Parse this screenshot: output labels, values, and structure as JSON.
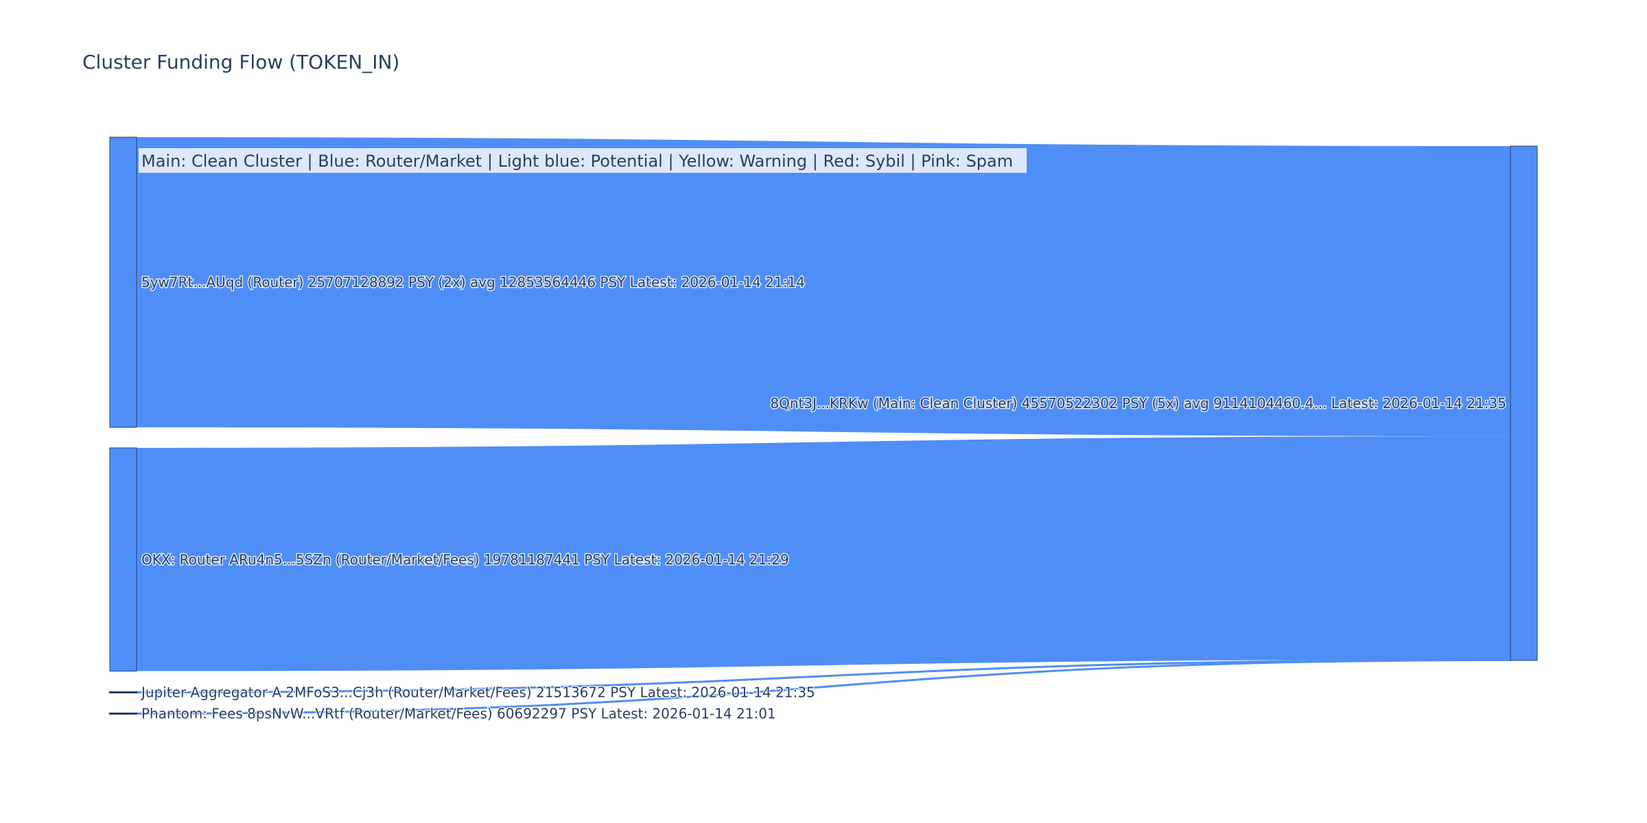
{
  "chart_data": {
    "type": "sankey",
    "title": "Cluster Funding Flow (TOKEN_IN)",
    "legend_text": "Main: Clean Cluster  |  Blue: Router/Market | Light blue: Potential | Yellow: Warning | Red: Sybil | Pink: Spam",
    "colors": {
      "node": "#4f8ef7",
      "link": "#4f8ef7",
      "node_border": "#2a3f5f",
      "legend_bg": "#dde8fb",
      "text": "#2a3f5f"
    },
    "target": {
      "label": "8Qnt3J...KRKw (Main: Clean Cluster) 45570522302 PSY (5x) avg 9114104460.4... Latest: 2026-01-14 21:35",
      "value": 45570522302
    },
    "sources": [
      {
        "label": "5yw7Rt...AUqd (Router) 25707128892 PSY (2x) avg 12853564446 PSY Latest: 2026-01-14 21:14",
        "value": 25707128892
      },
      {
        "label": "OKX: Router ARu4n5...5SZn (Router/Market/Fees) 19781187441 PSY Latest: 2026-01-14 21:29",
        "value": 19781187441
      },
      {
        "label": "Jupiter Aggregator A 2MFoS3...Cj3h (Router/Market/Fees) 21513672 PSY Latest: 2026-01-14 21:35",
        "value": 21513672
      },
      {
        "label": "Phantom: Fees 8psNvW...VRtf (Router/Market/Fees) 60692297 PSY Latest: 2026-01-14 21:01",
        "value": 60692297
      }
    ]
  }
}
